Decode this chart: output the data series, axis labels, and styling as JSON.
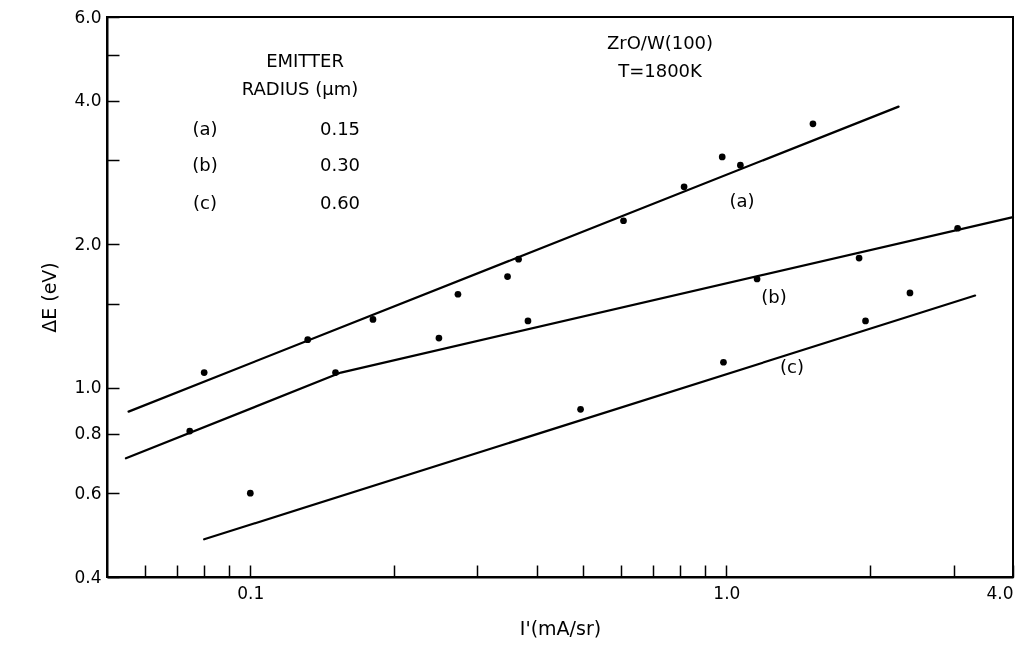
{
  "chart_data": {
    "type": "scatter",
    "xlabel": "I'(mA/sr)",
    "ylabel": "ΔE (eV)",
    "log": "xy",
    "grid": false,
    "xlim": [
      0.05,
      4.0
    ],
    "ylim": [
      0.4,
      6.0
    ],
    "xticks": [
      {
        "value": 0.06,
        "label": null
      },
      {
        "value": 0.07,
        "label": null
      },
      {
        "value": 0.08,
        "label": null
      },
      {
        "value": 0.09,
        "label": null
      },
      0.1,
      {
        "value": 0.2,
        "label": null
      },
      {
        "value": 0.3,
        "label": null
      },
      {
        "value": 0.4,
        "label": null
      },
      {
        "value": 0.5,
        "label": null
      },
      {
        "value": 0.6,
        "label": null
      },
      {
        "value": 0.7,
        "label": null
      },
      {
        "value": 0.8,
        "label": null
      },
      {
        "value": 0.9,
        "label": null
      },
      {
        "value": 1,
        "label": "1.0"
      },
      {
        "value": 2,
        "label": null
      },
      {
        "value": 3,
        "label": null
      },
      {
        "value": 4,
        "label": "4.0"
      }
    ],
    "yticks": [
      0.4,
      0.6,
      0.8,
      {
        "value": 1,
        "label": "1.0"
      },
      {
        "value": 1.5,
        "label": null
      },
      {
        "value": 2,
        "label": "2.0"
      },
      {
        "value": 3,
        "label": null
      },
      {
        "value": 4,
        "label": "4.0"
      },
      {
        "value": 5,
        "label": null
      },
      {
        "value": 6,
        "label": "6.0"
      }
    ],
    "series": [
      {
        "type": "scatter",
        "marker": "circle",
        "color": "#000000",
        "x": [
          0.08,
          0.132,
          0.181,
          0.273,
          0.347,
          0.366,
          0.608,
          0.815,
          0.98,
          1.07,
          1.52
        ],
        "values": [
          1.075,
          1.26,
          1.39,
          1.57,
          1.71,
          1.86,
          2.24,
          2.64,
          3.05,
          2.93,
          3.58
        ]
      },
      {
        "type": "scatter",
        "marker": "circle",
        "color": "#000000",
        "x": [
          0.0746,
          0.151,
          0.249,
          0.383,
          1.16,
          1.9,
          3.06
        ],
        "values": [
          0.81,
          1.075,
          1.27,
          1.38,
          1.69,
          1.87,
          2.16
        ]
      },
      {
        "type": "scatter",
        "marker": "circle",
        "color": "#000000",
        "x": [
          0.1,
          0.494,
          0.986,
          1.96,
          2.43
        ],
        "values": [
          0.6,
          0.9,
          1.13,
          1.38,
          1.58
        ]
      },
      {
        "type": "line",
        "marker": "none",
        "color": "#000000",
        "line_style": "solid",
        "x": [
          0.0555,
          2.3
        ],
        "values": [
          0.89,
          3.89
        ]
      },
      {
        "type": "line",
        "marker": "none",
        "color": "#000000",
        "line_style": "solid",
        "x": [
          0.0548,
          0.155,
          4.0
        ],
        "values": [
          0.71,
          1.075,
          2.28
        ]
      },
      {
        "type": "line",
        "marker": "none",
        "color": "#000000",
        "line_style": "solid",
        "x": [
          0.08,
          3.33
        ],
        "values": [
          0.48,
          1.56
        ]
      }
    ],
    "annotations": [
      "(a)",
      "(b)",
      "(c)",
      "EMITTER",
      "RADIUS (μm)",
      "(a)",
      "0.15",
      "(b)",
      "0.30",
      "(c)",
      "0.60",
      "ZrO/W(100)",
      "T=1800K"
    ]
  }
}
